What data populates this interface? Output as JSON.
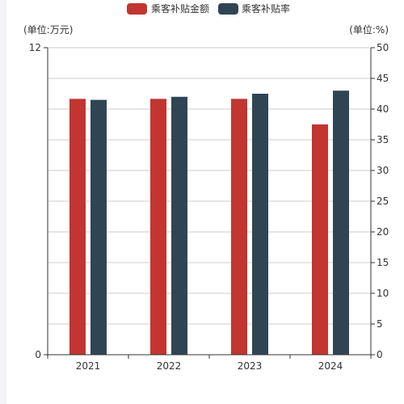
{
  "chart_data": {
    "type": "bar",
    "categories": [
      "2021",
      "2022",
      "2023",
      "2024"
    ],
    "series": [
      {
        "name": "乘客补贴金额",
        "axis": "left",
        "color": "#c23531",
        "values": [
          10.0,
          10.0,
          10.0,
          9.0
        ]
      },
      {
        "name": "乘客补贴率",
        "axis": "right",
        "color": "#2f4554",
        "values": [
          41.5,
          42.0,
          42.5,
          43.0
        ]
      }
    ],
    "y_left": {
      "label": "(单位:万元)",
      "min": 0,
      "max": 12,
      "ticks": [
        0,
        12
      ]
    },
    "y_right": {
      "label": "(单位:%)",
      "min": 0,
      "max": 50,
      "ticks": [
        0,
        5,
        10,
        15,
        20,
        25,
        30,
        35,
        40,
        45,
        50
      ]
    },
    "grid": true,
    "legend_position": "top-center"
  }
}
